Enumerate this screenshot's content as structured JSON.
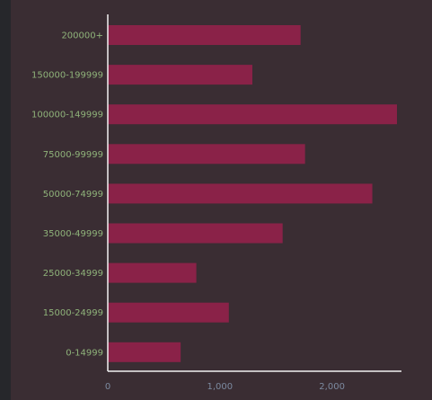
{
  "colors": {
    "background": "#3a2d33",
    "bar": "#8a2248",
    "axis": "#f2f2f2",
    "y_tick_text": "#8fb37a",
    "x_tick_text": "#7c8aa0"
  },
  "chart_data": {
    "type": "bar",
    "orientation": "horizontal",
    "title": "",
    "xlabel": "",
    "ylabel": "",
    "categories": [
      "200000+",
      "150000-199999",
      "100000-149999",
      "75000-99999",
      "50000-74999",
      "35000-49999",
      "25000-34999",
      "15000-24999",
      "0-14999"
    ],
    "values": [
      1720,
      1290,
      2580,
      1760,
      2360,
      1560,
      790,
      1080,
      650
    ],
    "xlim": [
      0,
      2620
    ],
    "x_ticks": [
      0,
      1000,
      2000
    ],
    "x_tick_labels": [
      "0",
      "1,000",
      "2,000"
    ],
    "grid": false
  }
}
